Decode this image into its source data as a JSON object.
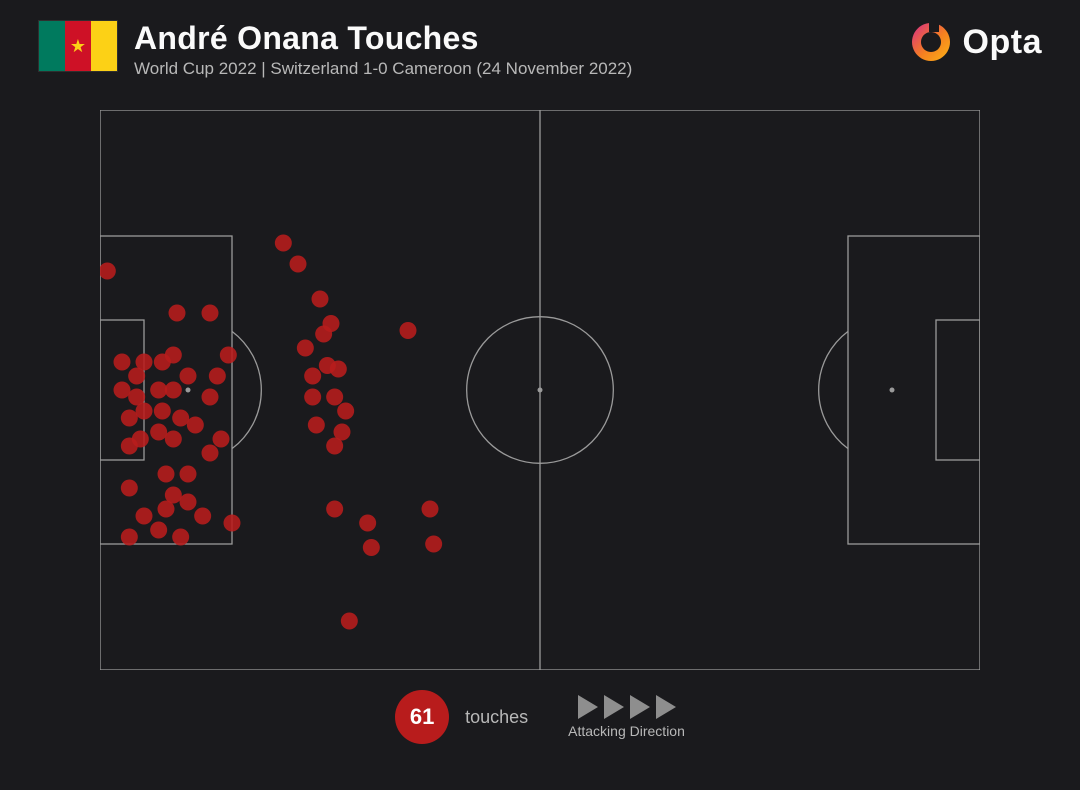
{
  "header": {
    "title": "André Onana Touches",
    "subtitle": "World Cup 2022 | Switzerland 1-0 Cameroon (24 November 2022)",
    "flag_colors": [
      "#007a5e",
      "#ce1126",
      "#fcd116"
    ],
    "flag_star_color": "#fcd116"
  },
  "brand": {
    "name": "Opta",
    "gradient": [
      "#d82b88",
      "#f58020",
      "#fbb416"
    ]
  },
  "stat": {
    "value": "61",
    "label": "touches",
    "badge_color": "#b81c1c"
  },
  "direction": {
    "label": "Attacking Direction",
    "arrow_count": 4,
    "arrow_color": "#8e8e8e"
  },
  "pitch": {
    "type": "scatter_pitch",
    "width_units": 120,
    "height_units": 80,
    "line_color": "#9a9a9a",
    "line_width": 1.3,
    "background_color": "#1a1a1d",
    "marker": {
      "fill": "#b81c1c",
      "opacity": 0.88,
      "radius": 8.5,
      "stroke": "none"
    },
    "touches": [
      [
        1.0,
        23.0
      ],
      [
        3.0,
        36.0
      ],
      [
        3.0,
        40.0
      ],
      [
        4.0,
        44.0
      ],
      [
        4.0,
        48.0
      ],
      [
        4.0,
        54.0
      ],
      [
        5.0,
        38.0
      ],
      [
        5.0,
        41.0
      ],
      [
        5.5,
        47.0
      ],
      [
        6.0,
        36.0
      ],
      [
        6.0,
        58.0
      ],
      [
        6.0,
        43.0
      ],
      [
        4.0,
        61.0
      ],
      [
        8.0,
        40.0
      ],
      [
        8.0,
        46.0
      ],
      [
        8.0,
        60.0
      ],
      [
        8.5,
        36.0
      ],
      [
        8.5,
        43.0
      ],
      [
        9.0,
        52.0
      ],
      [
        9.0,
        57.0
      ],
      [
        10.0,
        35.0
      ],
      [
        10.0,
        40.0
      ],
      [
        10.0,
        47.0
      ],
      [
        10.0,
        55.0
      ],
      [
        11.0,
        44.0
      ],
      [
        11.0,
        61.0
      ],
      [
        12.0,
        38.0
      ],
      [
        12.0,
        52.0
      ],
      [
        12.0,
        56.0
      ],
      [
        13.0,
        45.0
      ],
      [
        14.0,
        58.0
      ],
      [
        10.5,
        29.0
      ],
      [
        15.0,
        29.0
      ],
      [
        15.0,
        41.0
      ],
      [
        15.0,
        49.0
      ],
      [
        16.0,
        38.0
      ],
      [
        16.5,
        47.0
      ],
      [
        17.5,
        35.0
      ],
      [
        18.0,
        59.0
      ],
      [
        25.0,
        19.0
      ],
      [
        27.0,
        22.0
      ],
      [
        28.0,
        34.0
      ],
      [
        29.0,
        38.0
      ],
      [
        29.0,
        41.0
      ],
      [
        30.0,
        27.0
      ],
      [
        30.5,
        32.0
      ],
      [
        31.0,
        36.5
      ],
      [
        31.5,
        30.5
      ],
      [
        29.5,
        45.0
      ],
      [
        32.0,
        41.0
      ],
      [
        32.5,
        37.0
      ],
      [
        33.0,
        46.0
      ],
      [
        32.0,
        48.0
      ],
      [
        32.0,
        57.0
      ],
      [
        33.5,
        43.0
      ],
      [
        36.5,
        59.0
      ],
      [
        37.0,
        62.5
      ],
      [
        34.0,
        73.0
      ],
      [
        42.0,
        31.5
      ],
      [
        45.0,
        57.0
      ],
      [
        45.5,
        62.0
      ]
    ]
  }
}
